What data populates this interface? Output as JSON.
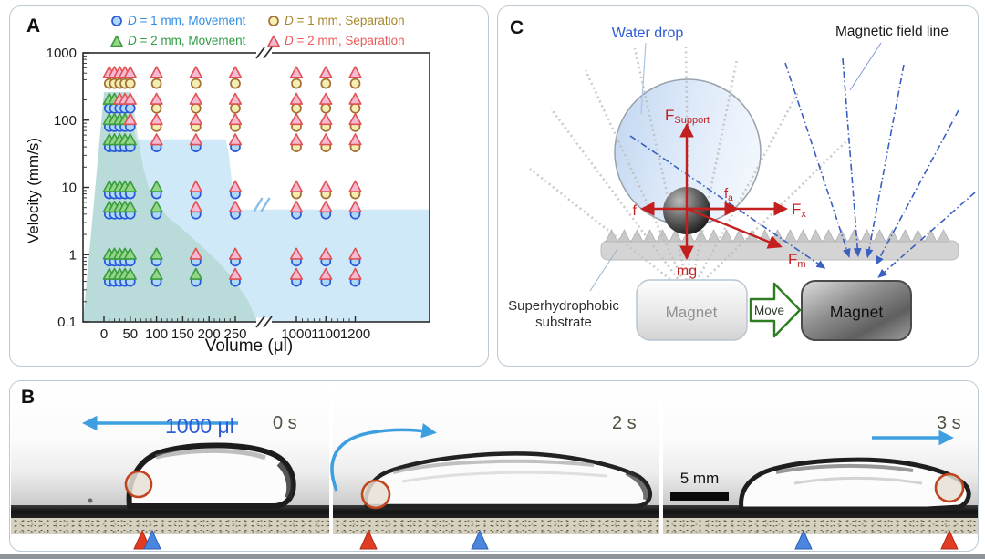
{
  "panel_a": {
    "label": "A",
    "xlabel": "Volume (μl)",
    "ylabel": "Velocity (mm/s)",
    "legend": [
      {
        "marker": "circle",
        "fill": "#aed8f7",
        "stroke": "#2a59d8",
        "text_color": "#2e8de8",
        "d": "D",
        "rest": " = 1 mm, Movement"
      },
      {
        "marker": "circle",
        "fill": "#f4eeb2",
        "stroke": "#a36f35",
        "text_color": "#a8872b",
        "d": "D",
        "rest": " = 1 mm, Separation"
      },
      {
        "marker": "triangle",
        "fill": "#93d687",
        "stroke": "#3a9c3f",
        "text_color": "#2f9e44",
        "d": "D",
        "rest": " = 2 mm, Movement"
      },
      {
        "marker": "triangle",
        "fill": "#f7bad4",
        "stroke": "#e05252",
        "text_color": "#ec5b5b",
        "d": "D",
        "rest": " = 2 mm, Separation"
      }
    ],
    "chart_data": {
      "type": "scatter",
      "title": "",
      "xlabel": "Volume (μl)",
      "ylabel": "Velocity (mm/s)",
      "x_scale": "linear with axis break between 250 and 1000",
      "y_scale": "log",
      "ylim": [
        0.1,
        1000
      ],
      "x_ticks_left": [
        0,
        50,
        100,
        150,
        200,
        250
      ],
      "x_ticks_right": [
        1000,
        1100,
        1200
      ],
      "y_ticks": [
        "0.1",
        "1",
        "10",
        "100",
        "1000"
      ],
      "volumes_ul": [
        10,
        20,
        30,
        40,
        50,
        100,
        175,
        250,
        1000,
        1100,
        1200
      ],
      "result_codes": {
        "M": "Movement",
        "S": "Separation"
      },
      "series_meta": {
        "circle": "D = 1 mm",
        "triangle": "D = 2 mm"
      },
      "rows": [
        {
          "velocity_d2": 500,
          "velocity_d1": 350,
          "d2": "SSSSSSSSSSS",
          "d1": "SSSSSSSSSSS"
        },
        {
          "velocity_d2": 200,
          "velocity_d1": 150,
          "d2": "MMSSSSSSSSS",
          "d1": "MMMMMSSSSSS"
        },
        {
          "velocity_d2": 100,
          "velocity_d1": 80,
          "d2": "MMMMSSSSSSS",
          "d1": "MMMMMSSSSSS"
        },
        {
          "velocity_d2": 50,
          "velocity_d1": 40,
          "d2": "MMMMMSSSSSS",
          "d1": "MMMMMMMMSSS"
        },
        {
          "velocity_d2": 10,
          "velocity_d1": 8,
          "d2": "MMMMMMSSSSS",
          "d1": "MMMMMMMMSSS"
        },
        {
          "velocity_d2": 5,
          "velocity_d1": 4,
          "d2": "MMMMMMSSSSS",
          "d1": "MMMMMMMMMMM"
        },
        {
          "velocity_d2": 1,
          "velocity_d1": 0.8,
          "d2": "MMMMMMSSSSS",
          "d1": "MMMMMMMMMMM"
        },
        {
          "velocity_d2": 0.5,
          "velocity_d1": 0.4,
          "d2": "MMMMMMMSSSS",
          "d1": "MMMMMMMMMMM"
        }
      ],
      "regions": {
        "movement_d1_blue": [
          [
            0,
            260
          ],
          [
            48,
            260
          ],
          [
            53,
            200
          ],
          [
            56,
            120
          ],
          [
            58,
            70
          ],
          [
            62,
            52
          ],
          [
            232,
            52
          ],
          [
            238,
            30
          ],
          [
            242,
            15
          ],
          [
            246,
            8
          ],
          [
            250,
            5.2
          ],
          [
            258,
            4.7
          ],
          [
            1250,
            4.7
          ]
        ],
        "movement_d2_green": [
          [
            0,
            260
          ],
          [
            50,
            260
          ],
          [
            56,
            160
          ],
          [
            62,
            80
          ],
          [
            68,
            38
          ],
          [
            76,
            18
          ],
          [
            86,
            9.5
          ],
          [
            100,
            5.8
          ],
          [
            122,
            3.6
          ],
          [
            150,
            2.4
          ],
          [
            185,
            1.35
          ],
          [
            220,
            0.75
          ],
          [
            250,
            0.4
          ],
          [
            275,
            0.2
          ],
          [
            292,
            0.1
          ]
        ]
      },
      "colors": {
        "movement_d1_region": "#cfe9f8",
        "movement_d2_region": "rgba(150,200,170,0.38)"
      }
    }
  },
  "panel_c": {
    "label": "C",
    "water_drop_label": "Water drop",
    "field_line_label": "Magnetic field line",
    "substrate_label_line1": "Superhydrophobic",
    "substrate_label_line2": "substrate",
    "magnet_left": "Magnet",
    "magnet_right": "Magnet",
    "move_label": "Move",
    "forces": {
      "support": {
        "main": "F",
        "sub": "Support"
      },
      "friction": {
        "main": "f",
        "sub": ""
      },
      "adhesion": {
        "main": "f",
        "sub": "a"
      },
      "fx": {
        "main": "F",
        "sub": "x"
      },
      "gravity": {
        "main": "mg",
        "sub": ""
      },
      "fm": {
        "main": "F",
        "sub": "m"
      }
    },
    "colors": {
      "force_arrow": "#c41f1f",
      "field_line_blue": "#3a5fc0",
      "move_arrow_green": "#2e7d22"
    }
  },
  "panel_b": {
    "label": "B",
    "volume_label": "1000 μl",
    "frames": [
      {
        "time": "0 s"
      },
      {
        "time": "2 s"
      },
      {
        "time": "3 s"
      }
    ],
    "scale_bar_label": "5 mm",
    "colors": {
      "motion_arrow": "#3d9fe0",
      "magnet_marker": "#e03c22",
      "drop_marker": "#4a86dd"
    }
  }
}
